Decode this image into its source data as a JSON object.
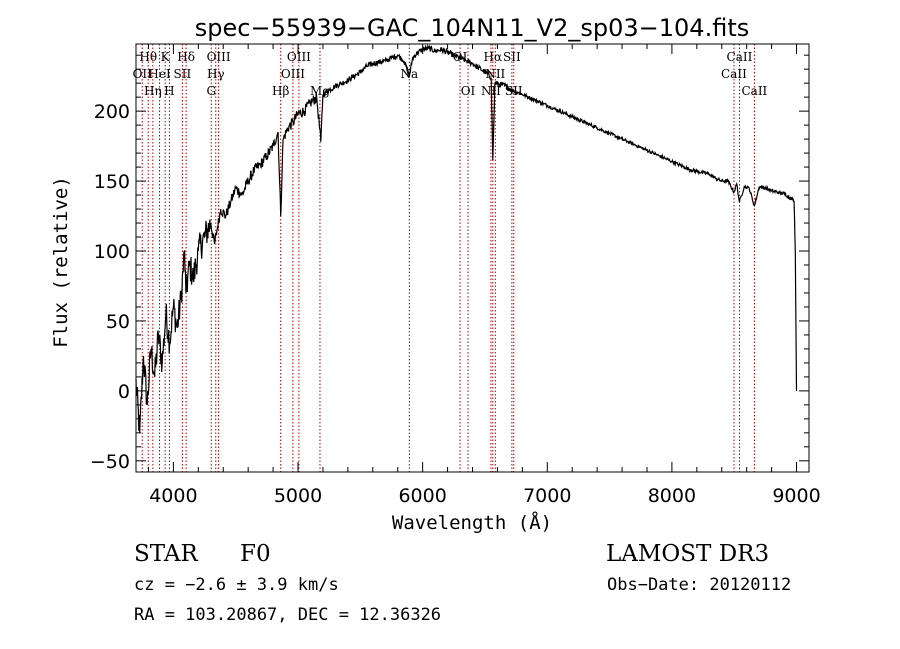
{
  "chart_data": {
    "type": "line",
    "title": "spec−55939−GAC_104N11_V2_sp03−104.fits",
    "xlabel": "Wavelength (Å)",
    "ylabel": "Flux (relative)",
    "xlim": [
      3700,
      9100
    ],
    "ylim": [
      -58,
      248
    ],
    "x_ticks": [
      4000,
      5000,
      6000,
      7000,
      8000,
      9000
    ],
    "x_tick_labels": [
      "4000",
      "5000",
      "6000",
      "7000",
      "8000",
      "9000"
    ],
    "y_ticks": [
      -50,
      0,
      50,
      100,
      150,
      200
    ],
    "y_tick_labels": [
      "−50",
      "0",
      "50",
      "100",
      "150",
      "200"
    ],
    "series": [
      {
        "name": "flux",
        "color": "#000000",
        "points": [
          [
            3700,
            5
          ],
          [
            3730,
            -30
          ],
          [
            3760,
            25
          ],
          [
            3790,
            -10
          ],
          [
            3820,
            30
          ],
          [
            3850,
            10
          ],
          [
            3880,
            40
          ],
          [
            3910,
            20
          ],
          [
            3940,
            55
          ],
          [
            3970,
            35
          ],
          [
            4000,
            60
          ],
          [
            4030,
            45
          ],
          [
            4060,
            65
          ],
          [
            4090,
            100
          ],
          [
            4100,
            70
          ],
          [
            4130,
            90
          ],
          [
            4160,
            80
          ],
          [
            4200,
            100
          ],
          [
            4250,
            110
          ],
          [
            4300,
            120
          ],
          [
            4330,
            105
          ],
          [
            4380,
            130
          ],
          [
            4420,
            125
          ],
          [
            4460,
            135
          ],
          [
            4500,
            145
          ],
          [
            4550,
            140
          ],
          [
            4600,
            150
          ],
          [
            4650,
            158
          ],
          [
            4700,
            162
          ],
          [
            4750,
            168
          ],
          [
            4800,
            175
          ],
          [
            4840,
            185
          ],
          [
            4861,
            125
          ],
          [
            4880,
            180
          ],
          [
            4920,
            188
          ],
          [
            4960,
            192
          ],
          [
            5000,
            198
          ],
          [
            5050,
            200
          ],
          [
            5100,
            206
          ],
          [
            5150,
            210
          ],
          [
            5183,
            178
          ],
          [
            5200,
            212
          ],
          [
            5250,
            215
          ],
          [
            5300,
            218
          ],
          [
            5350,
            220
          ],
          [
            5400,
            222
          ],
          [
            5450,
            225
          ],
          [
            5500,
            228
          ],
          [
            5550,
            232
          ],
          [
            5600,
            234
          ],
          [
            5650,
            235
          ],
          [
            5700,
            236
          ],
          [
            5750,
            238
          ],
          [
            5800,
            240
          ],
          [
            5850,
            236
          ],
          [
            5893,
            225
          ],
          [
            5920,
            238
          ],
          [
            5960,
            242
          ],
          [
            6000,
            244
          ],
          [
            6050,
            245
          ],
          [
            6100,
            243
          ],
          [
            6150,
            244
          ],
          [
            6200,
            242
          ],
          [
            6250,
            240
          ],
          [
            6300,
            238
          ],
          [
            6350,
            236
          ],
          [
            6400,
            234
          ],
          [
            6450,
            231
          ],
          [
            6500,
            228
          ],
          [
            6550,
            224
          ],
          [
            6563,
            165
          ],
          [
            6580,
            220
          ],
          [
            6620,
            219
          ],
          [
            6670,
            218
          ],
          [
            6700,
            216
          ],
          [
            6750,
            214
          ],
          [
            6800,
            212
          ],
          [
            6850,
            210
          ],
          [
            6900,
            208
          ],
          [
            6950,
            206
          ],
          [
            7000,
            204
          ],
          [
            7050,
            202
          ],
          [
            7100,
            200
          ],
          [
            7150,
            198
          ],
          [
            7200,
            196
          ],
          [
            7250,
            194
          ],
          [
            7300,
            192
          ],
          [
            7350,
            190
          ],
          [
            7400,
            188
          ],
          [
            7450,
            186
          ],
          [
            7500,
            184
          ],
          [
            7550,
            182
          ],
          [
            7600,
            180
          ],
          [
            7650,
            178
          ],
          [
            7700,
            176
          ],
          [
            7750,
            174
          ],
          [
            7800,
            172
          ],
          [
            7850,
            170
          ],
          [
            7900,
            168
          ],
          [
            7950,
            166
          ],
          [
            8000,
            164
          ],
          [
            8050,
            162
          ],
          [
            8100,
            160
          ],
          [
            8150,
            158
          ],
          [
            8200,
            157
          ],
          [
            8250,
            156
          ],
          [
            8300,
            155
          ],
          [
            8350,
            152
          ],
          [
            8400,
            150
          ],
          [
            8450,
            150
          ],
          [
            8498,
            142
          ],
          [
            8520,
            148
          ],
          [
            8542,
            135
          ],
          [
            8580,
            146
          ],
          [
            8620,
            145
          ],
          [
            8662,
            132
          ],
          [
            8700,
            146
          ],
          [
            8750,
            145
          ],
          [
            8800,
            143
          ],
          [
            8850,
            142
          ],
          [
            8900,
            141
          ],
          [
            8950,
            138
          ],
          [
            8980,
            136
          ],
          [
            8990,
            100
          ],
          [
            9000,
            0
          ]
        ]
      }
    ],
    "lines": [
      {
        "x": 3750,
        "label": "OII",
        "row": 2
      },
      {
        "x": 3798,
        "label": "Hθ",
        "row": 1
      },
      {
        "x": 3835,
        "label": "Hη",
        "row": 3
      },
      {
        "x": 3889,
        "label": "HeI",
        "row": 2
      },
      {
        "x": 3934,
        "label": "K",
        "row": 1
      },
      {
        "x": 3968,
        "label": "H",
        "row": 3
      },
      {
        "x": 4072,
        "label": "SII",
        "row": 2
      },
      {
        "x": 4102,
        "label": "Hδ",
        "row": 1
      },
      {
        "x": 4304,
        "label": "G",
        "row": 3
      },
      {
        "x": 4340,
        "label": "Hγ",
        "row": 2
      },
      {
        "x": 4363,
        "label": "OIII",
        "row": 1
      },
      {
        "x": 4861,
        "label": "Hβ",
        "row": 3
      },
      {
        "x": 4959,
        "label": "OIII",
        "row": 2
      },
      {
        "x": 5007,
        "label": "OIII",
        "row": 1
      },
      {
        "x": 5176,
        "label": "Mg",
        "row": 3
      },
      {
        "x": 5893,
        "label": "Na",
        "row": 2
      },
      {
        "x": 6300,
        "label": "OI",
        "row": 1
      },
      {
        "x": 6364,
        "label": "OI",
        "row": 3
      },
      {
        "x": 6548,
        "label": "NII",
        "row": 3
      },
      {
        "x": 6563,
        "label": "Hα",
        "row": 1
      },
      {
        "x": 6583,
        "label": "NII",
        "row": 2
      },
      {
        "x": 6716,
        "label": "SII",
        "row": 1
      },
      {
        "x": 6731,
        "label": "SII",
        "row": 3
      },
      {
        "x": 8498,
        "label": "CaII",
        "row": 2
      },
      {
        "x": 8542,
        "label": "CaII",
        "row": 1
      },
      {
        "x": 8662,
        "label": "CaII",
        "row": 3
      }
    ]
  },
  "info": {
    "object_class": "STAR",
    "subclass": "F0",
    "survey": "LAMOST DR3",
    "redshift": "cz = −2.6 ± 3.9 km/s",
    "obs_date": "Obs−Date: 20120112",
    "coords": "RA = 103.20867, DEC =  12.36326"
  }
}
